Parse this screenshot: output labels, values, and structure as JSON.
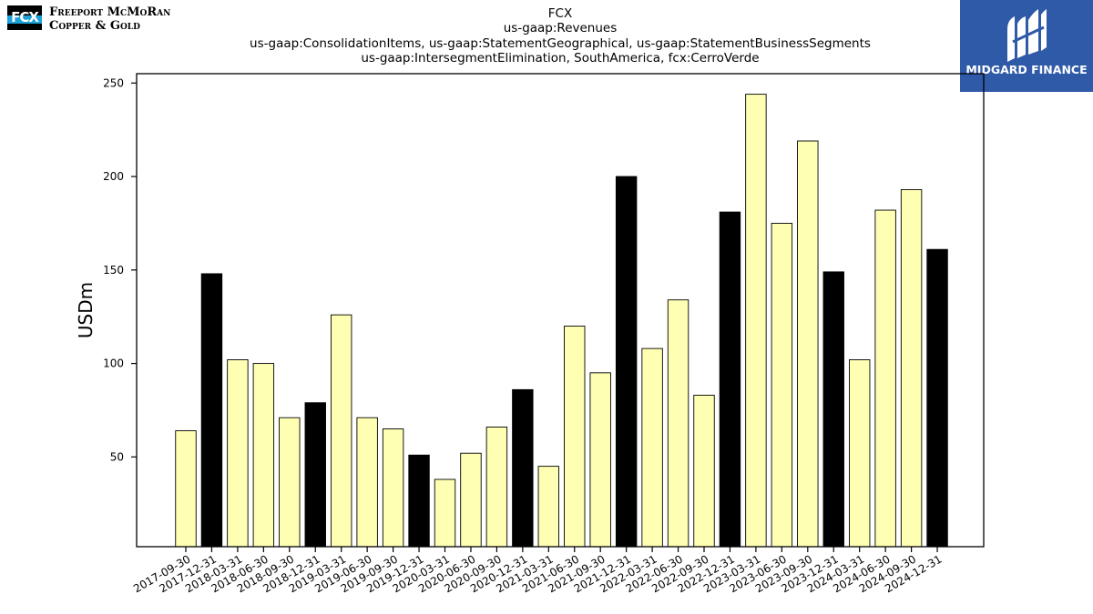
{
  "header": {
    "company_line1": "Freeport McMoRan",
    "company_line2": "Copper & Gold",
    "company_mark": "FCX",
    "brand_name": "MIDGARD FINANCE"
  },
  "chart_data": {
    "type": "bar",
    "title_lines": [
      "FCX",
      "us-gaap:Revenues",
      "us-gaap:ConsolidationItems, us-gaap:StatementGeographical, us-gaap:StatementBusinessSegments",
      "us-gaap:IntersegmentElimination, SouthAmerica, fcx:CerroVerde"
    ],
    "xlabel": "",
    "ylabel": "USDm",
    "ylim": [
      2,
      255
    ],
    "yticks": [
      50,
      100,
      150,
      200,
      250
    ],
    "grid": false,
    "categories": [
      "2017-09-30",
      "2017-12-31",
      "2018-03-31",
      "2018-06-30",
      "2018-09-30",
      "2018-12-31",
      "2019-03-31",
      "2019-06-30",
      "2019-09-30",
      "2019-12-31",
      "2020-03-31",
      "2020-06-30",
      "2020-09-30",
      "2020-12-31",
      "2021-03-31",
      "2021-06-30",
      "2021-09-30",
      "2021-12-31",
      "2022-03-31",
      "2022-06-30",
      "2022-09-30",
      "2022-12-31",
      "2023-03-31",
      "2023-06-30",
      "2023-09-30",
      "2023-12-31",
      "2024-03-31",
      "2024-06-30",
      "2024-09-30",
      "2024-12-31"
    ],
    "values": [
      64,
      148,
      102,
      100,
      71,
      79,
      126,
      71,
      65,
      51,
      38,
      52,
      66,
      86,
      45,
      120,
      95,
      200,
      108,
      134,
      83,
      181,
      244,
      175,
      219,
      149,
      102,
      182,
      193,
      161
    ],
    "bar_colors": {
      "quarter": "#ffffb4",
      "year_end": "#000000",
      "edge": "#000000"
    }
  }
}
